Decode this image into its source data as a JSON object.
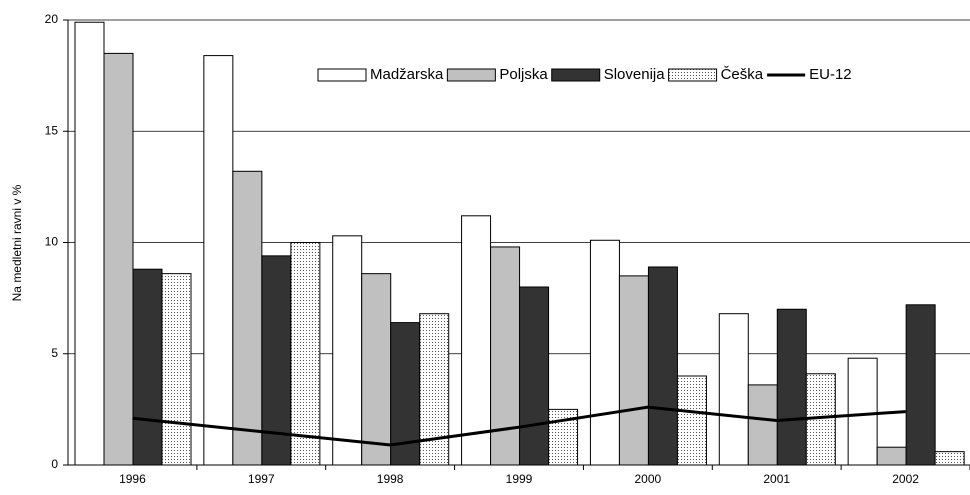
{
  "chart_data": {
    "type": "bar",
    "y_label": "Na medletni ravni v %",
    "categories": [
      "1996",
      "1997",
      "1998",
      "1999",
      "2000",
      "2001",
      "2002"
    ],
    "series": [
      {
        "name": "Madžarska",
        "color": "#ffffff",
        "values": [
          19.9,
          18.4,
          10.3,
          11.2,
          10.1,
          6.8,
          4.8
        ]
      },
      {
        "name": "Poljska",
        "color": "#c0c0c0",
        "values": [
          18.5,
          13.2,
          8.6,
          9.8,
          8.5,
          3.6,
          0.8
        ]
      },
      {
        "name": "Slovenija",
        "color": "#333333",
        "values": [
          8.8,
          9.4,
          6.4,
          8.0,
          8.9,
          7.0,
          7.2
        ]
      },
      {
        "name": "Češka",
        "color": "#ffffff",
        "pattern": "dots",
        "values": [
          8.6,
          10.0,
          6.8,
          2.5,
          4.0,
          4.1,
          0.6
        ]
      },
      {
        "name": "EU-12",
        "type": "line",
        "color": "#000000",
        "values": [
          2.1,
          1.5,
          0.9,
          1.7,
          2.6,
          2.0,
          2.4
        ]
      }
    ],
    "ylim": [
      0,
      20
    ],
    "yticks": [
      0,
      5,
      10,
      15,
      20
    ],
    "grid": true,
    "legend": "top-right"
  }
}
